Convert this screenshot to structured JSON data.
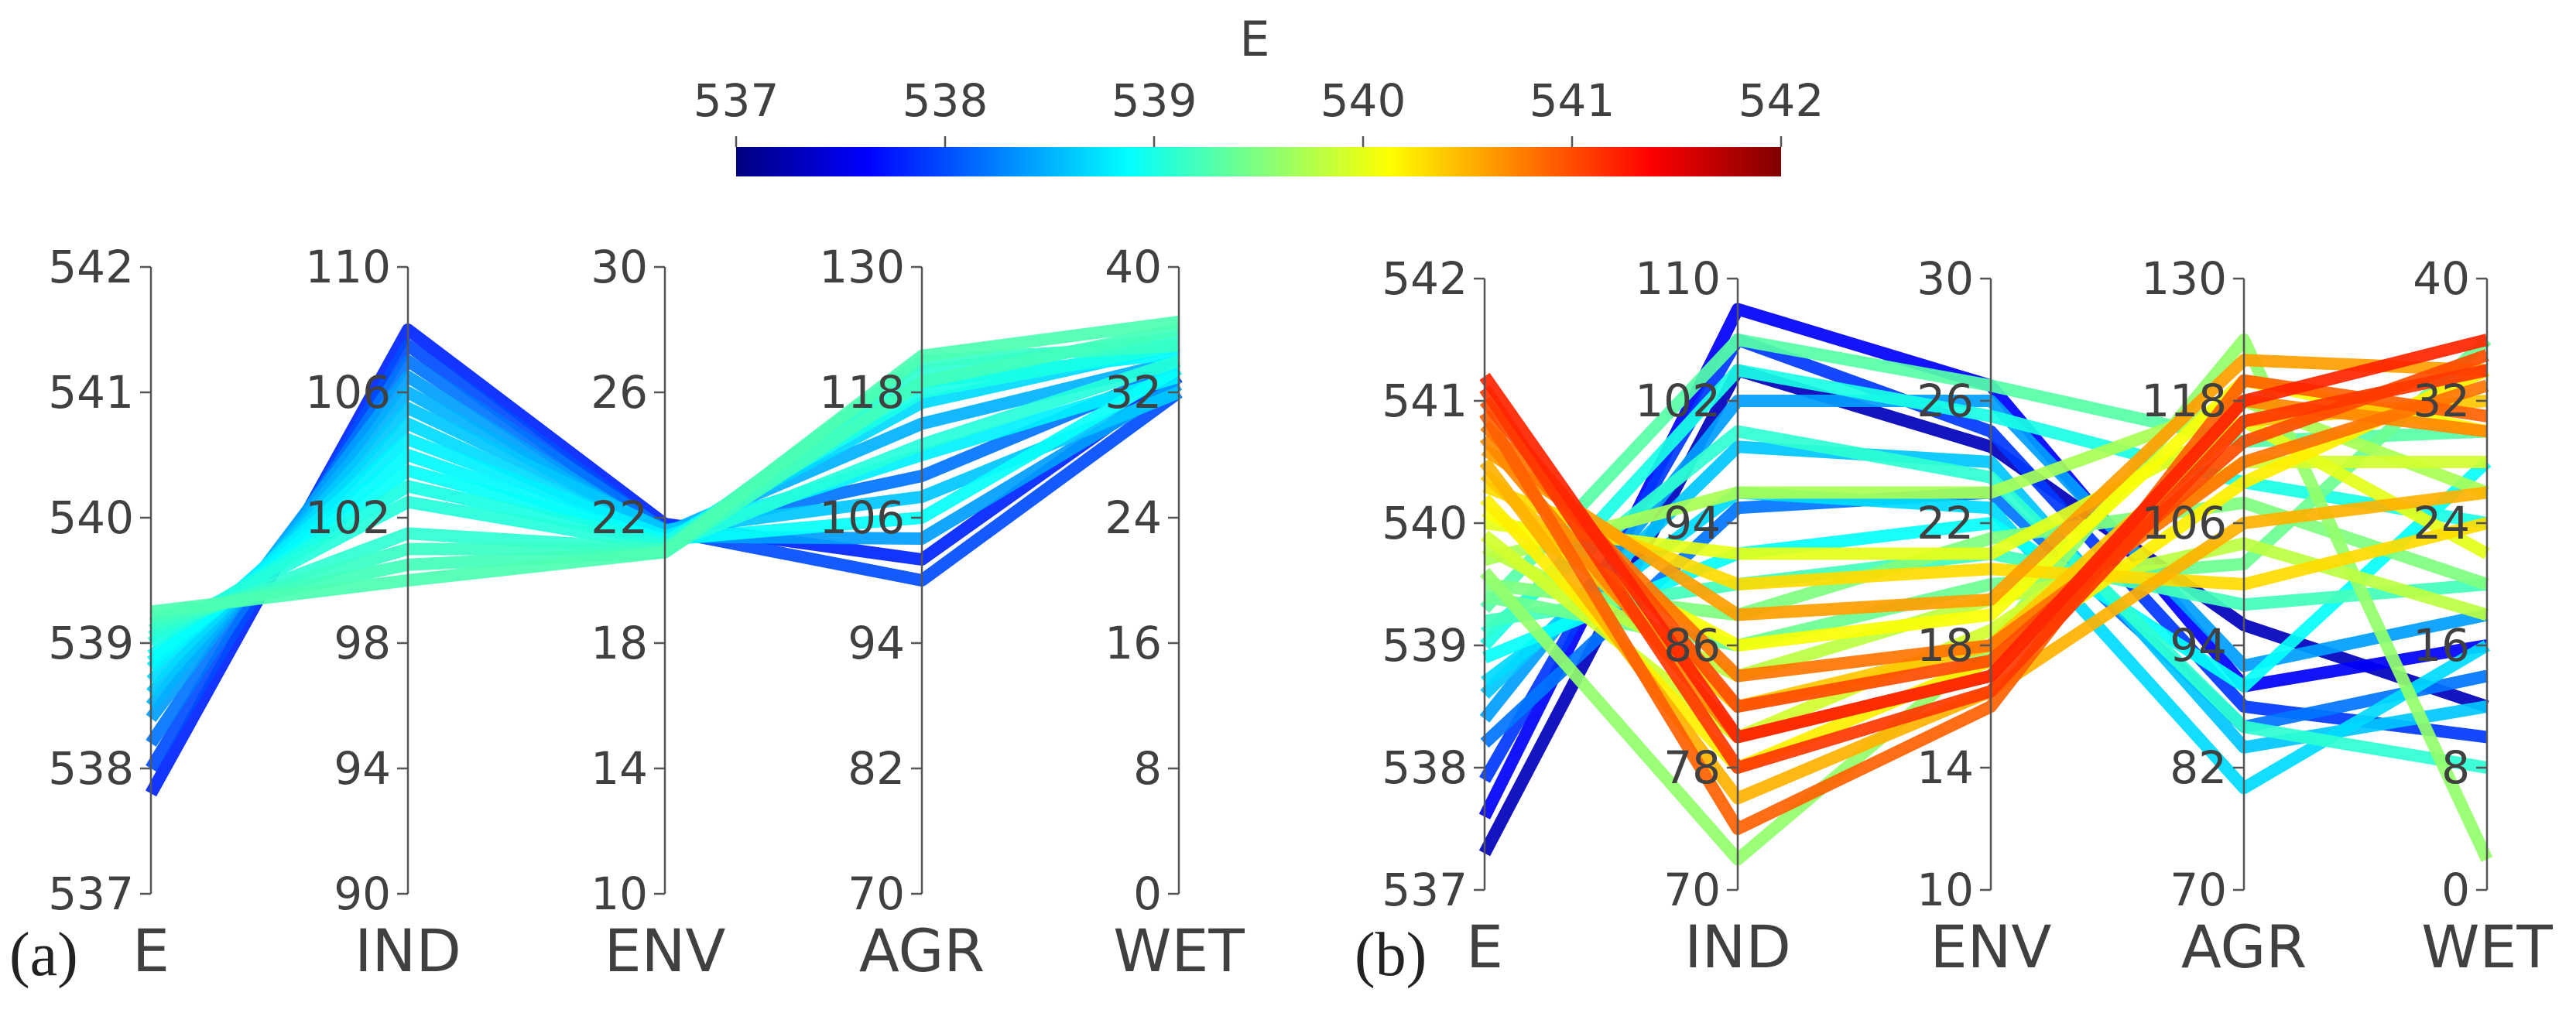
{
  "colorbar": {
    "title": "E",
    "min": 537,
    "max": 542,
    "ticks": [
      "537",
      "538",
      "539",
      "540",
      "541",
      "542"
    ],
    "colormap": [
      "#00007f",
      "#0000ff",
      "#007fff",
      "#00ffff",
      "#7fff7f",
      "#ffff00",
      "#ff7f00",
      "#ff0000",
      "#7f0000"
    ]
  },
  "chart_data": [
    {
      "type": "parallel-coordinates",
      "panel_label": "(a)",
      "axes": [
        {
          "name": "E",
          "range": [
            537,
            542
          ],
          "ticks": [
            "537",
            "538",
            "539",
            "540",
            "541",
            "542"
          ]
        },
        {
          "name": "IND",
          "range": [
            90,
            110
          ],
          "ticks": [
            "90",
            "94",
            "98",
            "102",
            "106",
            "110"
          ]
        },
        {
          "name": "ENV",
          "range": [
            10,
            30
          ],
          "ticks": [
            "10",
            "14",
            "18",
            "22",
            "26",
            "30"
          ]
        },
        {
          "name": "AGR",
          "range": [
            70,
            130
          ],
          "ticks": [
            "70",
            "82",
            "94",
            "106",
            "118",
            "130"
          ]
        },
        {
          "name": "WET",
          "range": [
            0,
            40
          ],
          "ticks": [
            "0",
            "8",
            "16",
            "24",
            "32",
            "40"
          ]
        }
      ],
      "lines": [
        [
          537.8,
          108.0,
          21.8,
          102.0,
          33.0
        ],
        [
          538.0,
          107.5,
          21.6,
          100.0,
          32.0
        ],
        [
          538.2,
          107.0,
          21.6,
          110.0,
          33.5
        ],
        [
          538.4,
          106.5,
          21.4,
          104.0,
          32.5
        ],
        [
          538.5,
          106.0,
          21.5,
          115.0,
          34.0
        ],
        [
          538.6,
          105.5,
          21.6,
          108.0,
          32.0
        ],
        [
          538.7,
          105.0,
          21.3,
          117.0,
          35.0
        ],
        [
          538.8,
          104.5,
          21.4,
          112.0,
          33.0
        ],
        [
          538.85,
          104.0,
          21.2,
          119.0,
          34.5
        ],
        [
          538.9,
          103.5,
          21.3,
          106.0,
          33.5
        ],
        [
          539.0,
          103.0,
          21.2,
          118.0,
          35.0
        ],
        [
          539.05,
          102.5,
          21.1,
          113.0,
          34.0
        ],
        [
          539.1,
          101.5,
          21.0,
          120.0,
          35.5
        ],
        [
          539.15,
          101.0,
          21.0,
          121.0,
          35.0
        ],
        [
          539.2,
          100.5,
          20.9,
          119.0,
          36.0
        ],
        [
          539.25,
          100.0,
          20.9,
          121.5,
          36.5
        ]
      ]
    },
    {
      "type": "parallel-coordinates",
      "panel_label": "(b)",
      "axes": [
        {
          "name": "E",
          "range": [
            537,
            542
          ],
          "ticks": [
            "537",
            "538",
            "539",
            "540",
            "541",
            "542"
          ]
        },
        {
          "name": "IND",
          "range": [
            70,
            110
          ],
          "ticks": [
            "70",
            "78",
            "86",
            "94",
            "102",
            "110"
          ]
        },
        {
          "name": "ENV",
          "range": [
            10,
            30
          ],
          "ticks": [
            "10",
            "14",
            "18",
            "22",
            "26",
            "30"
          ]
        },
        {
          "name": "AGR",
          "range": [
            70,
            130
          ],
          "ticks": [
            "70",
            "82",
            "94",
            "106",
            "118",
            "130"
          ]
        },
        {
          "name": "WET",
          "range": [
            0,
            40
          ],
          "ticks": [
            "0",
            "8",
            "16",
            "24",
            "32",
            "40"
          ]
        }
      ],
      "lines": [
        [
          537.3,
          104.0,
          24.5,
          96.0,
          12.0
        ],
        [
          537.6,
          108.0,
          26.5,
          90.0,
          16.0
        ],
        [
          537.9,
          106.0,
          25.0,
          88.0,
          10.0
        ],
        [
          538.2,
          95.0,
          23.0,
          86.0,
          14.0
        ],
        [
          538.4,
          102.0,
          26.0,
          92.0,
          18.0
        ],
        [
          538.6,
          99.0,
          24.0,
          84.0,
          12.0
        ],
        [
          538.7,
          96.0,
          22.5,
          80.0,
          16.0
        ],
        [
          538.9,
          92.0,
          22.0,
          90.0,
          28.0
        ],
        [
          539.0,
          104.0,
          25.5,
          110.0,
          24.0
        ],
        [
          539.1,
          100.0,
          23.5,
          86.0,
          8.0
        ],
        [
          539.2,
          90.0,
          21.0,
          98.0,
          20.0
        ],
        [
          539.3,
          106.0,
          26.5,
          114.0,
          30.0
        ],
        [
          539.4,
          86.0,
          20.0,
          102.0,
          36.0
        ],
        [
          539.5,
          88.0,
          21.5,
          108.0,
          20.0
        ],
        [
          539.6,
          72.0,
          18.0,
          124.0,
          2.0
        ],
        [
          539.7,
          96.0,
          23.0,
          118.0,
          26.0
        ],
        [
          539.8,
          84.0,
          19.5,
          104.0,
          18.0
        ],
        [
          539.9,
          80.0,
          18.5,
          112.0,
          28.0
        ],
        [
          540.0,
          92.0,
          21.0,
          116.0,
          22.0
        ],
        [
          540.1,
          86.0,
          19.0,
          120.0,
          30.0
        ],
        [
          540.2,
          78.0,
          17.5,
          110.0,
          34.0
        ],
        [
          540.3,
          90.0,
          20.5,
          100.0,
          24.0
        ],
        [
          540.4,
          82.0,
          18.0,
          116.0,
          32.0
        ],
        [
          540.5,
          76.0,
          16.5,
          106.0,
          26.0
        ],
        [
          540.6,
          88.0,
          19.5,
          122.0,
          34.0
        ],
        [
          540.7,
          80.0,
          17.0,
          118.0,
          30.0
        ],
        [
          540.8,
          84.0,
          18.0,
          112.0,
          33.0
        ],
        [
          540.9,
          74.0,
          16.0,
          120.0,
          31.0
        ],
        [
          541.0,
          82.0,
          17.5,
          114.0,
          35.0
        ],
        [
          541.1,
          78.0,
          16.5,
          116.0,
          34.0
        ],
        [
          541.2,
          80.0,
          17.0,
          118.0,
          36.0
        ]
      ]
    }
  ]
}
